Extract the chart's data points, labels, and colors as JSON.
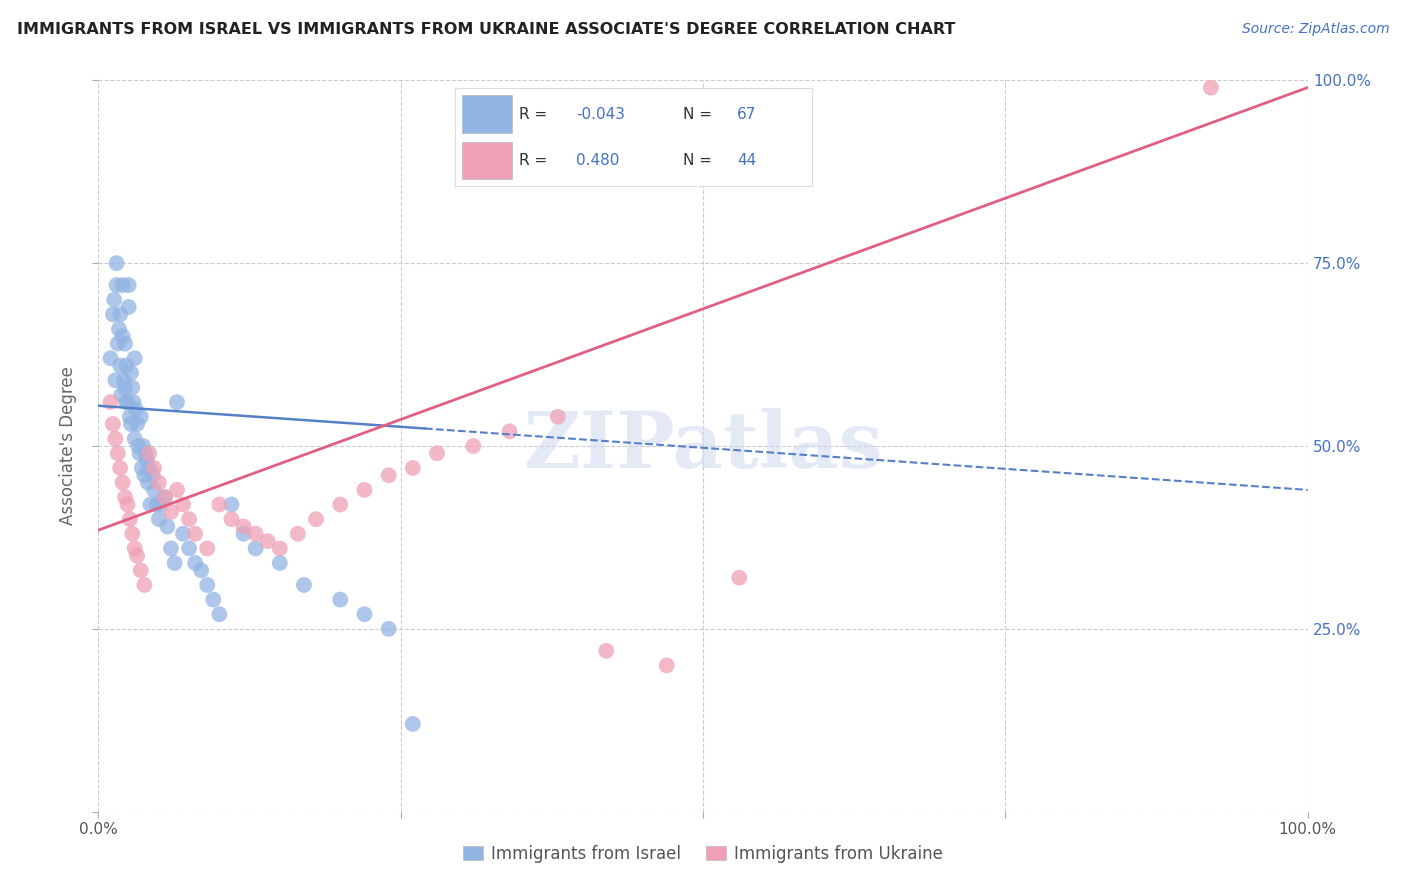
{
  "title": "IMMIGRANTS FROM ISRAEL VS IMMIGRANTS FROM UKRAINE ASSOCIATE'S DEGREE CORRELATION CHART",
  "source_text": "Source: ZipAtlas.com",
  "ylabel": "Associate's Degree",
  "x_label_bottom": "Immigrants from Israel",
  "x_label_bottom2": "Immigrants from Ukraine",
  "xlim": [
    0.0,
    1.0
  ],
  "ylim": [
    0.0,
    1.0
  ],
  "israel_color": "#92b4e3",
  "ukraine_color": "#f0a0b5",
  "israel_line_color": "#5580c8",
  "ukraine_line_color": "#e06080",
  "watermark": "ZIPatlas",
  "background_color": "#ffffff",
  "grid_color": "#cccccc",
  "israel_dots_x": [
    0.01,
    0.012,
    0.013,
    0.014,
    0.015,
    0.015,
    0.016,
    0.017,
    0.018,
    0.018,
    0.019,
    0.02,
    0.02,
    0.021,
    0.022,
    0.022,
    0.023,
    0.023,
    0.024,
    0.025,
    0.025,
    0.026,
    0.027,
    0.027,
    0.028,
    0.029,
    0.03,
    0.03,
    0.031,
    0.032,
    0.033,
    0.034,
    0.035,
    0.036,
    0.037,
    0.038,
    0.039,
    0.04,
    0.041,
    0.042,
    0.043,
    0.045,
    0.046,
    0.048,
    0.05,
    0.052,
    0.055,
    0.057,
    0.06,
    0.063,
    0.065,
    0.07,
    0.075,
    0.08,
    0.085,
    0.09,
    0.095,
    0.1,
    0.11,
    0.12,
    0.13,
    0.15,
    0.17,
    0.2,
    0.22,
    0.24,
    0.26
  ],
  "israel_dots_y": [
    0.62,
    0.68,
    0.7,
    0.59,
    0.75,
    0.72,
    0.64,
    0.66,
    0.61,
    0.68,
    0.57,
    0.65,
    0.72,
    0.59,
    0.58,
    0.64,
    0.56,
    0.61,
    0.56,
    0.72,
    0.69,
    0.54,
    0.6,
    0.53,
    0.58,
    0.56,
    0.51,
    0.62,
    0.55,
    0.53,
    0.5,
    0.49,
    0.54,
    0.47,
    0.5,
    0.46,
    0.49,
    0.48,
    0.45,
    0.47,
    0.42,
    0.46,
    0.44,
    0.42,
    0.4,
    0.42,
    0.43,
    0.39,
    0.36,
    0.34,
    0.56,
    0.38,
    0.36,
    0.34,
    0.33,
    0.31,
    0.29,
    0.27,
    0.42,
    0.38,
    0.36,
    0.34,
    0.31,
    0.29,
    0.27,
    0.25,
    0.12
  ],
  "ukraine_dots_x": [
    0.01,
    0.012,
    0.014,
    0.016,
    0.018,
    0.02,
    0.022,
    0.024,
    0.026,
    0.028,
    0.03,
    0.032,
    0.035,
    0.038,
    0.042,
    0.046,
    0.05,
    0.055,
    0.06,
    0.065,
    0.07,
    0.075,
    0.08,
    0.09,
    0.1,
    0.11,
    0.12,
    0.13,
    0.14,
    0.15,
    0.165,
    0.18,
    0.2,
    0.22,
    0.24,
    0.26,
    0.28,
    0.31,
    0.34,
    0.38,
    0.42,
    0.47,
    0.53,
    0.92
  ],
  "ukraine_dots_y": [
    0.56,
    0.53,
    0.51,
    0.49,
    0.47,
    0.45,
    0.43,
    0.42,
    0.4,
    0.38,
    0.36,
    0.35,
    0.33,
    0.31,
    0.49,
    0.47,
    0.45,
    0.43,
    0.41,
    0.44,
    0.42,
    0.4,
    0.38,
    0.36,
    0.42,
    0.4,
    0.39,
    0.38,
    0.37,
    0.36,
    0.38,
    0.4,
    0.42,
    0.44,
    0.46,
    0.47,
    0.49,
    0.5,
    0.52,
    0.54,
    0.22,
    0.2,
    0.32,
    0.99
  ],
  "israel_trend_y_start": 0.555,
  "israel_trend_y_end": 0.44,
  "ukraine_trend_y_start": 0.385,
  "ukraine_trend_y_end": 0.99
}
